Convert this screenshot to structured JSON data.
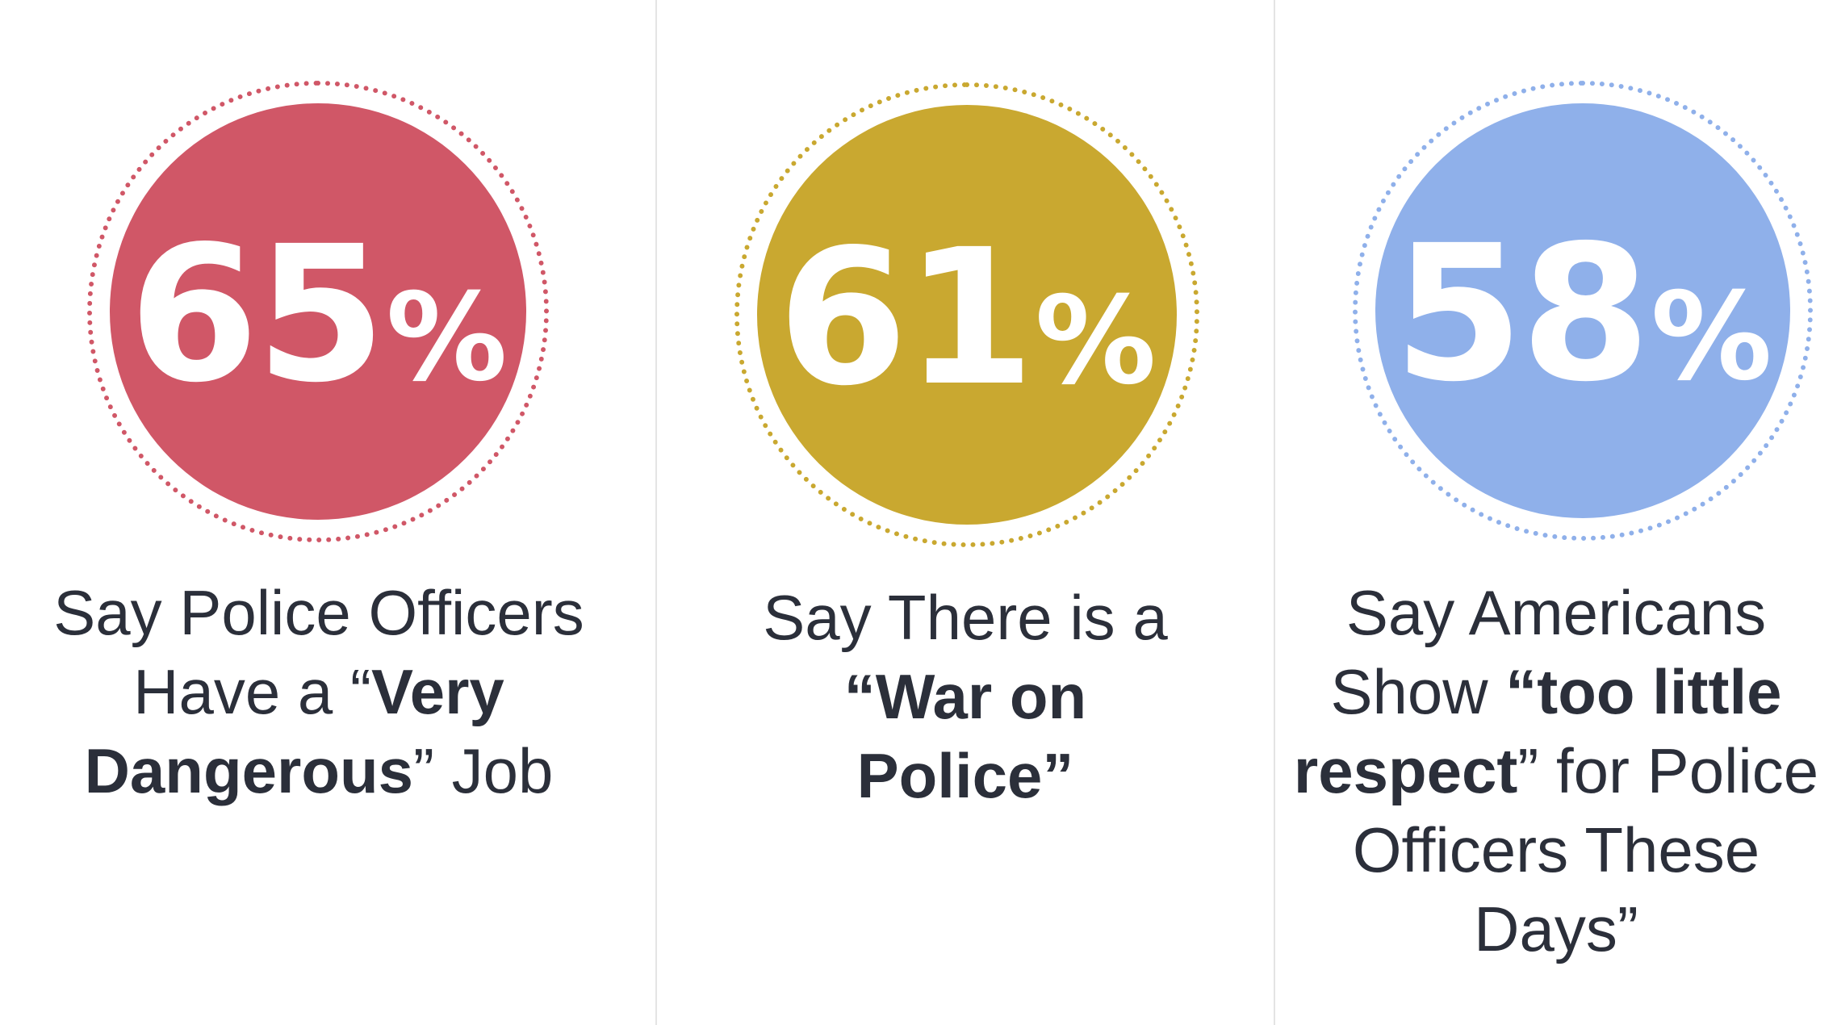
{
  "stats": [
    {
      "value": "65",
      "unit": "%",
      "percent": 65,
      "color": "#d05767",
      "caption_before": "Say Police Officers Have a “",
      "caption_bold": "Very Dangerous",
      "caption_after": "” Job"
    },
    {
      "value": "61",
      "unit": "%",
      "percent": 61,
      "color": "#c9a830",
      "caption_before": "Say There is a",
      "caption_bold": "“War on Police”",
      "caption_after": ""
    },
    {
      "value": "58",
      "unit": "%",
      "percent": 58,
      "color": "#8fb0ea",
      "caption_before": "Say Americans Show ",
      "caption_bold": "“too little respect",
      "caption_after": "” for Police Officers These Days”"
    }
  ]
}
